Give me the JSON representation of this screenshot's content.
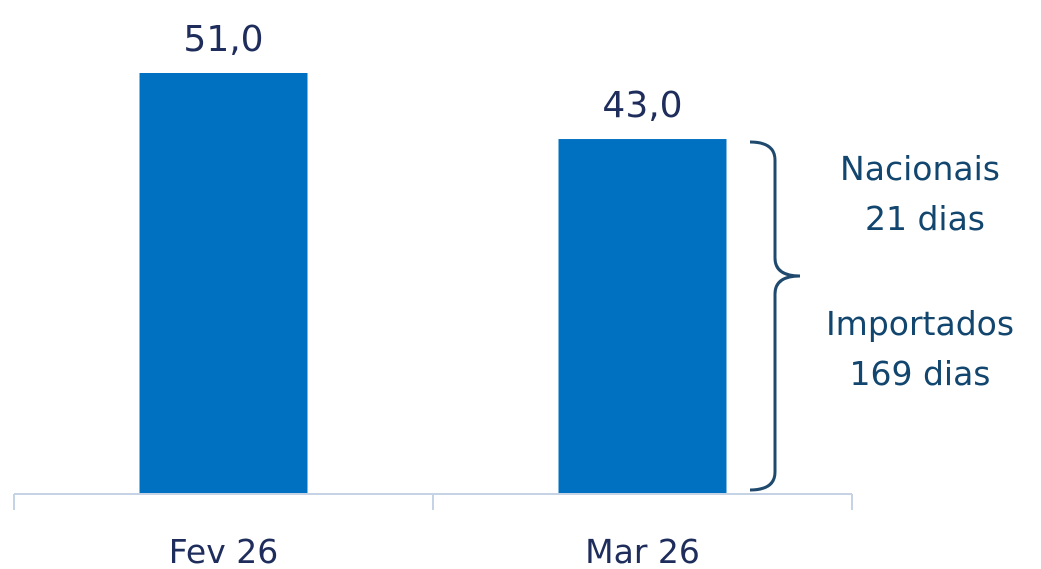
{
  "chart_data": {
    "type": "bar",
    "categories": [
      "Fev 26",
      "Mar 26"
    ],
    "values": [
      51.0,
      43.0
    ],
    "value_labels": [
      "51,0",
      "43,0"
    ],
    "title": "",
    "xlabel": "",
    "ylabel": "",
    "ylim": [
      0,
      51.0
    ],
    "grid": false,
    "bracket": {
      "category": "Mar 26",
      "segments": [
        {
          "label": "Nacionais",
          "detail": "21 dias"
        },
        {
          "label": "Importados",
          "detail": "169 dias"
        }
      ]
    }
  },
  "colors": {
    "bar": "#0070c0",
    "value_text": "#1f2d5c",
    "category_text": "#1f2d5c",
    "note_text": "#12466e",
    "bracket": "#1f4a6e",
    "axis": "#c5d3e4"
  }
}
